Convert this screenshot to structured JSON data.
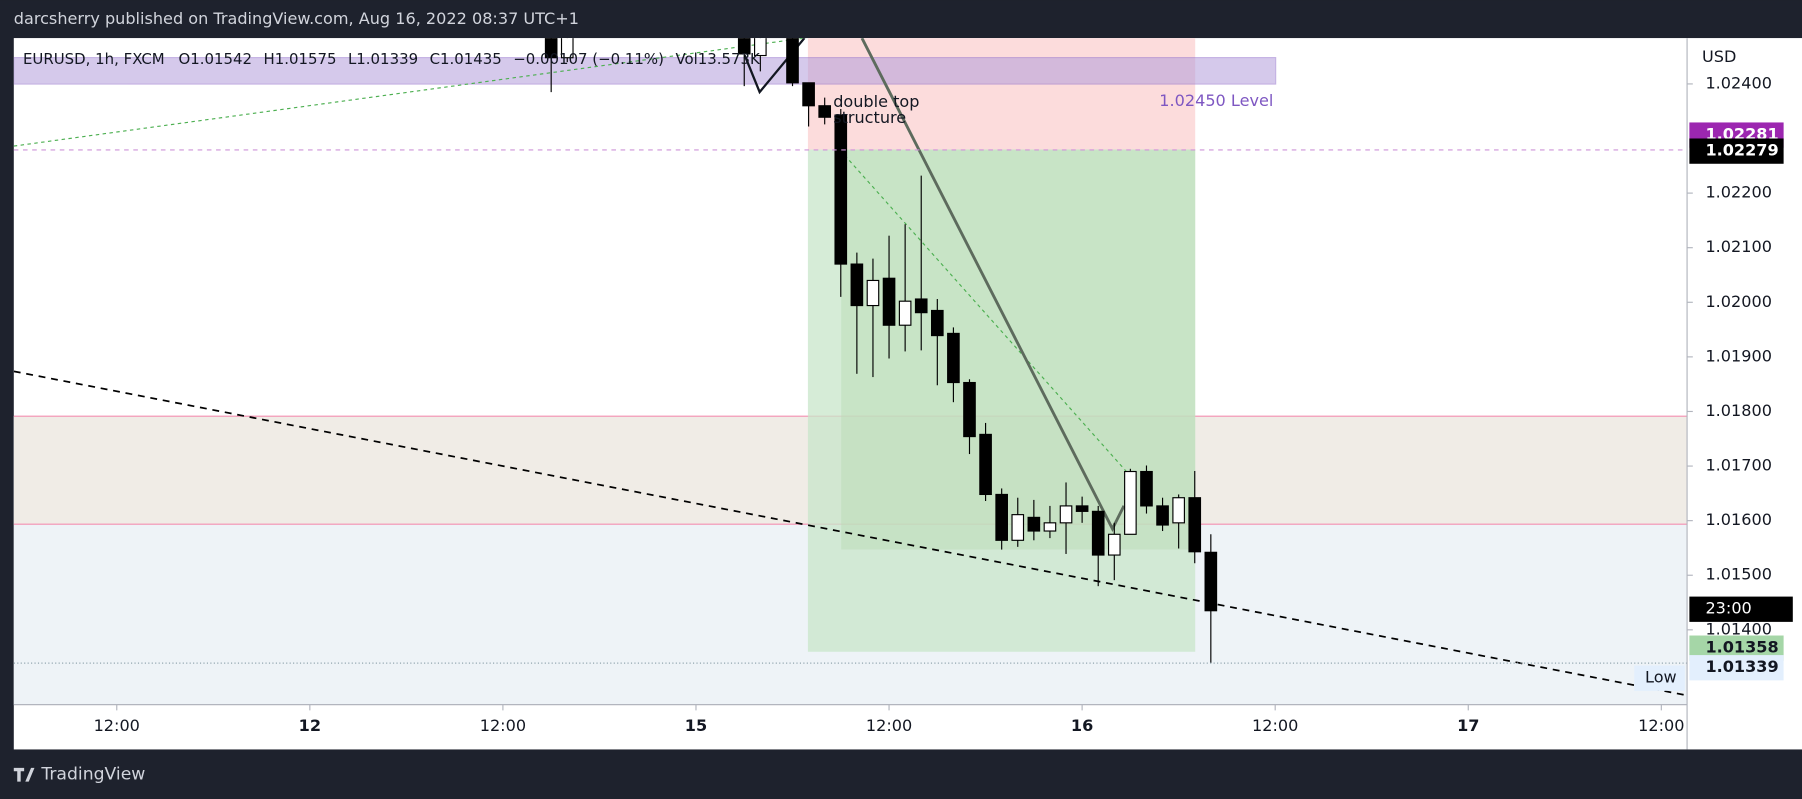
{
  "chart_data": {
    "type": "candlestick",
    "publisher": "darcsherry published on TradingView.com, Aug 16, 2022 08:37 UTC+1",
    "symbol": "EURUSD, 1h, FXCM",
    "ohlc_text": [
      "O1.01542",
      "H1.01575",
      "L1.01339",
      "C1.01435",
      "−0.00107 (−0.11%)",
      "Vol13.573K"
    ],
    "annotation": [
      "double top",
      "structure"
    ],
    "level_label": "1.02450 Level",
    "currency": "USD",
    "time_label": "23:00",
    "low_label": "Low",
    "brand": "TradingView",
    "x": [
      15,
      16,
      27,
      28,
      30,
      31,
      32,
      33,
      34,
      35,
      36,
      37,
      38,
      39,
      40,
      41,
      42,
      43,
      44,
      45,
      46,
      47,
      48,
      49,
      50,
      51,
      52,
      53,
      54,
      55,
      56
    ],
    "open": [
      1.0252,
      1.02448,
      1.0252,
      1.02452,
      1.0252,
      1.02402,
      1.0236,
      1.02343,
      1.0207,
      1.01994,
      1.02044,
      1.01958,
      1.02006,
      1.01985,
      1.01943,
      1.01853,
      1.01758,
      1.01648,
      1.01564,
      1.01606,
      1.01581,
      1.01596,
      1.01627,
      1.01617,
      1.01537,
      1.01575,
      1.0169,
      1.01627,
      1.01596,
      1.01642,
      1.01542
    ],
    "high": [
      1.0255,
      1.0255,
      1.0255,
      1.0253,
      1.0255,
      1.02402,
      1.02375,
      1.02354,
      1.02091,
      1.0208,
      1.02122,
      1.02143,
      1.02232,
      1.02006,
      1.01954,
      1.01859,
      1.01779,
      1.01659,
      1.01642,
      1.01638,
      1.01627,
      1.0167,
      1.01644,
      1.01627,
      1.01596,
      1.01695,
      1.01701,
      1.01642,
      1.01648,
      1.01691,
      1.01575
    ],
    "low": [
      1.02385,
      1.0244,
      1.02396,
      1.02423,
      1.02396,
      1.02322,
      1.02326,
      1.0201,
      1.01869,
      1.01863,
      1.01897,
      1.0191,
      1.01912,
      1.01848,
      1.01817,
      1.01722,
      1.01636,
      1.01547,
      1.01552,
      1.01564,
      1.01568,
      1.01539,
      1.01596,
      1.0148,
      1.01491,
      1.01575,
      1.01613,
      1.01581,
      1.01549,
      1.01522,
      1.01339
    ],
    "close": [
      1.02448,
      1.0252,
      1.02455,
      1.025,
      1.02402,
      1.0236,
      1.02339,
      1.0207,
      1.01994,
      1.0204,
      1.01958,
      1.02002,
      1.01981,
      1.01939,
      1.01853,
      1.01754,
      1.01648,
      1.01564,
      1.01611,
      1.01581,
      1.01596,
      1.01627,
      1.01617,
      1.01537,
      1.01575,
      1.0169,
      1.01627,
      1.01592,
      1.01642,
      1.01543,
      1.01435
    ],
    "xlim": [
      -18.4,
      85.6
    ],
    "xticks": [
      {
        "value": -12,
        "label": "12:00"
      },
      {
        "value": 0,
        "label": "12"
      },
      {
        "value": 12,
        "label": "12:00"
      },
      {
        "value": 24,
        "label": "15"
      },
      {
        "value": 36,
        "label": "12:00"
      },
      {
        "value": 48,
        "label": "16"
      },
      {
        "value": 60,
        "label": "12:00"
      },
      {
        "value": 72,
        "label": "17"
      },
      {
        "value": 84,
        "label": "12:00"
      }
    ],
    "ylim": [
      1.01263,
      1.02484
    ],
    "yticks": [
      {
        "value": 1.024,
        "label": "1.02400"
      },
      {
        "value": 1.022,
        "label": "1.02200"
      },
      {
        "value": 1.021,
        "label": "1.02100"
      },
      {
        "value": 1.02,
        "label": "1.02000"
      },
      {
        "value": 1.019,
        "label": "1.01900"
      },
      {
        "value": 1.018,
        "label": "1.01800"
      },
      {
        "value": 1.017,
        "label": "1.01700"
      },
      {
        "value": 1.016,
        "label": "1.01600"
      },
      {
        "value": 1.015,
        "label": "1.01500"
      },
      {
        "value": 1.014,
        "label": "1.01400"
      }
    ],
    "price_labels": [
      {
        "value": 1.02281,
        "label": "1.02281",
        "color": "#9c27b0"
      },
      {
        "value": 1.02279,
        "label": "1.02279",
        "color": "#000000"
      },
      {
        "value": 1.01358,
        "label": "1.01358",
        "color": "#a5d6a7"
      },
      {
        "value": 1.01339,
        "label": "1.01339",
        "color": "#e3effd"
      }
    ]
  }
}
